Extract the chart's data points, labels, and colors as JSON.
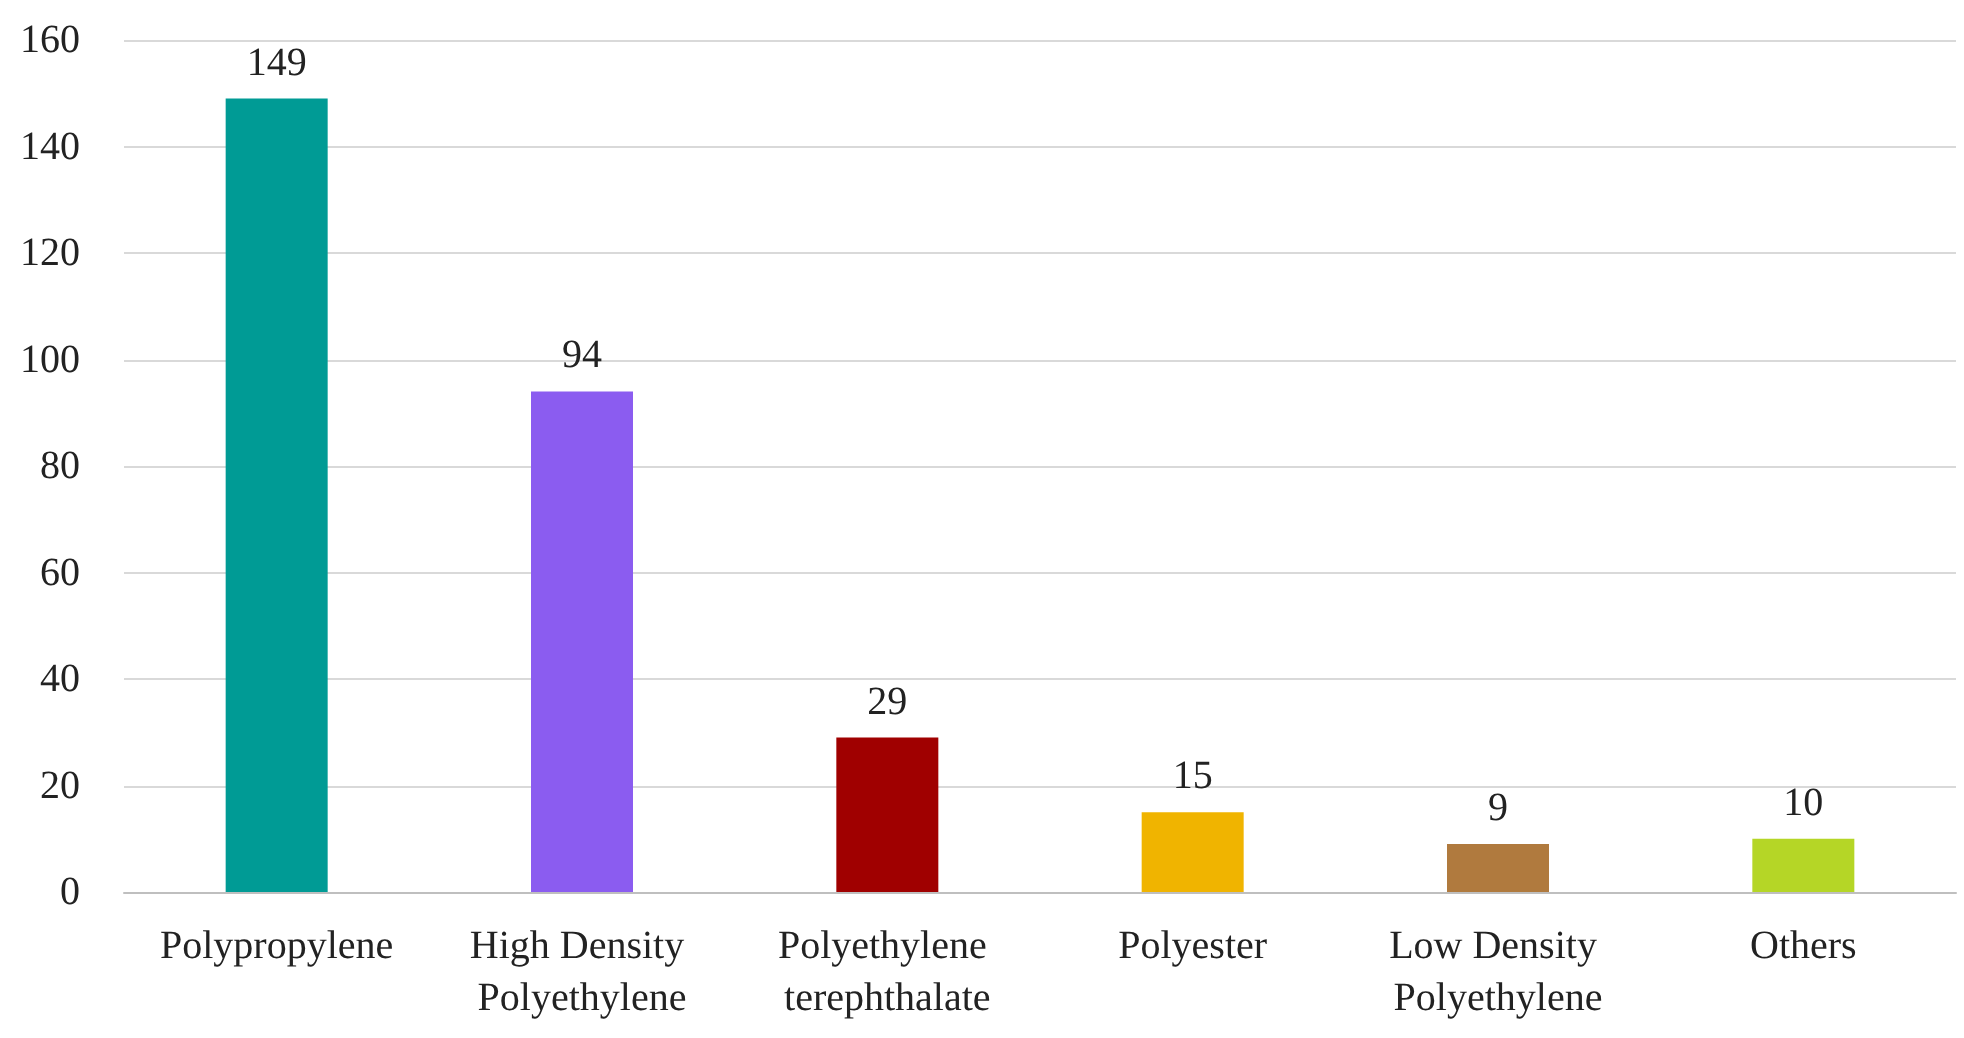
{
  "chart_data": {
    "type": "bar",
    "categories": [
      "Polypropylene",
      "High Density Polyethylene",
      "Polyethylene terephthalate",
      "Polyester",
      "Low Density Polyethylene",
      "Others"
    ],
    "values": [
      149,
      94,
      29,
      15,
      9,
      10
    ],
    "colors": [
      "#009b95",
      "#8b5cf0",
      "#a00000",
      "#f0b400",
      "#b07a3e",
      "#b5d626"
    ],
    "ylim": [
      0,
      160
    ],
    "yticks": [
      0,
      20,
      40,
      60,
      80,
      100,
      120,
      140,
      160
    ],
    "grid": "y",
    "data_labels": true
  }
}
